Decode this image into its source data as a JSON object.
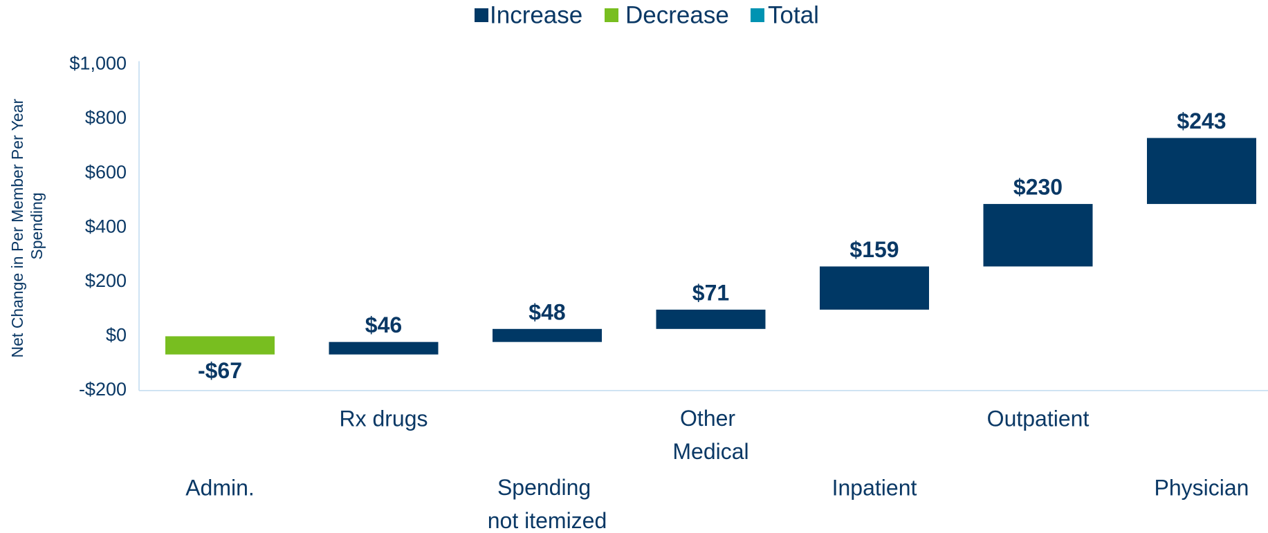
{
  "chart_data": {
    "type": "waterfall",
    "y_label": "Net Change in Per Member Per Year Spending",
    "categories": [
      "Admin.",
      "Rx drugs",
      "Spending not itemized",
      "Other Medical",
      "Inpatient",
      "Outpatient",
      "Physician"
    ],
    "values": [
      -67,
      46,
      48,
      71,
      159,
      230,
      243
    ],
    "value_labels": [
      "-$67",
      "$46",
      "$48",
      "$71",
      "$159",
      "$230",
      "$243"
    ],
    "legend": [
      {
        "name": "Increase",
        "color": "#003865"
      },
      {
        "name": "Decrease",
        "color": "#78be20"
      },
      {
        "name": "Total",
        "color": "#0093b2"
      }
    ],
    "legend_position": "top",
    "ylim": [
      -200,
      1000
    ],
    "yticks": [
      {
        "value": -200,
        "label": "-$200"
      },
      {
        "value": 0,
        "label": "$0"
      },
      {
        "value": 200,
        "label": "$200"
      },
      {
        "value": 400,
        "label": "$400"
      },
      {
        "value": 600,
        "label": "$600"
      },
      {
        "value": 800,
        "label": "$800"
      },
      {
        "value": 1000,
        "label": "$1,000"
      }
    ],
    "grid": false
  }
}
